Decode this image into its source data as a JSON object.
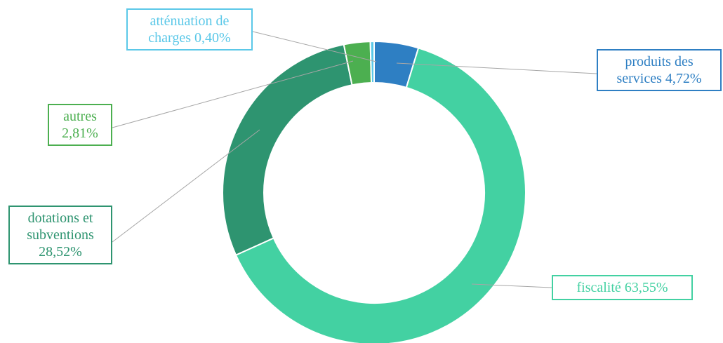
{
  "chart_data": {
    "type": "donut",
    "categories": [
      "produits des services",
      "fiscalité",
      "dotations et subventions",
      "autres",
      "atténuation de charges"
    ],
    "values": [
      4.72,
      63.55,
      28.52,
      2.81,
      0.4
    ],
    "value_labels": [
      "4,72%",
      "63,55%",
      "28,52%",
      "2,81%",
      "0,40%"
    ],
    "colors": [
      "#2e7fc3",
      "#43d1a2",
      "#2e9470",
      "#4caf50",
      "#5bc8e8"
    ]
  }
}
